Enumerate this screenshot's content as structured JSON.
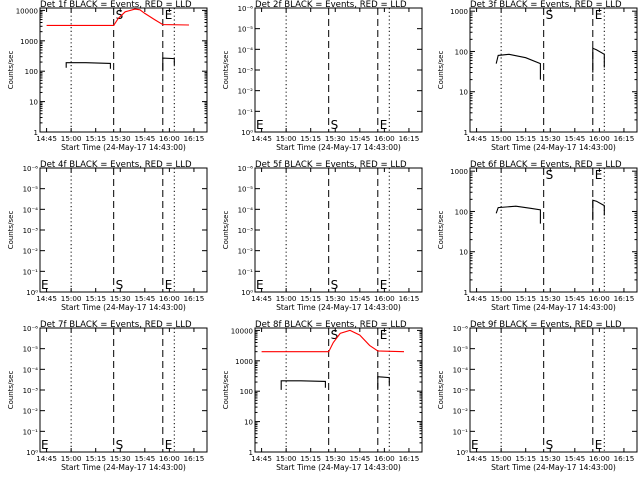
{
  "chart_data": [
    {
      "type": "line",
      "title": "Det 1f BLACK = Events, RED = LLD",
      "xlabel": "Start Time (24-May-17 14:43:00)",
      "ylabel": "Counts/sec",
      "xticks": [
        "14:45",
        "15:00",
        "15:15",
        "15:30",
        "15:45",
        "16:00",
        "16:15"
      ],
      "yticks": [
        "1",
        "10",
        "100",
        "1000",
        "10000"
      ],
      "ylim": [
        1,
        12000
      ],
      "vlines": [
        {
          "style": "dotted",
          "x": 15.0
        },
        {
          "style": "dashed",
          "x": 15.433,
          "label": "S"
        },
        {
          "style": "dashed",
          "x": 15.933,
          "label": "E"
        },
        {
          "style": "dotted",
          "x": 16.05
        }
      ],
      "series": [
        {
          "name": "Events",
          "color": "#000000",
          "points": [
            [
              14.95,
              130
            ],
            [
              14.95,
              190
            ],
            [
              15.15,
              190
            ],
            [
              15.4,
              180
            ],
            [
              15.4,
              120
            ]
          ]
        },
        {
          "name": "Events",
          "color": "#000000",
          "points": [
            [
              15.933,
              100
            ],
            [
              15.933,
              270
            ],
            [
              16.05,
              260
            ],
            [
              16.05,
              160
            ]
          ]
        },
        {
          "name": "LLD",
          "color": "#ff0000",
          "points": [
            [
              14.75,
              3200
            ],
            [
              15.433,
              3200
            ],
            [
              15.48,
              5500
            ],
            [
              15.55,
              9000
            ],
            [
              15.65,
              11000
            ],
            [
              15.7,
              10500
            ],
            [
              15.75,
              8000
            ],
            [
              15.85,
              5000
            ],
            [
              15.933,
              3400
            ],
            [
              16.2,
              3300
            ]
          ]
        }
      ]
    },
    {
      "type": "line",
      "title": "Det 2f BLACK = Events, RED = LLD",
      "xlabel": "Start Time (24-May-17 14:43:00)",
      "ylabel": "Counts/sec",
      "xticks": [
        "14:45",
        "15:00",
        "15:15",
        "15:30",
        "15:45",
        "16:00",
        "16:15"
      ],
      "yticks": [
        "10⁰",
        "10⁻¹",
        "10⁻²",
        "10⁻³",
        "10⁻⁴",
        "10⁻⁵",
        "10⁻⁶"
      ],
      "vlines": [
        {
          "style": "dotted",
          "x": 15.0
        },
        {
          "style": "dashed",
          "x": 15.433,
          "label": "S"
        },
        {
          "style": "dashed",
          "x": 15.933,
          "label": "E"
        },
        {
          "style": "dotted",
          "x": 16.05
        }
      ],
      "series": []
    },
    {
      "type": "line",
      "title": "Det 3f BLACK = Events, RED = LLD",
      "xlabel": "Start Time (24-May-17 14:43:00)",
      "ylabel": "Counts/sec",
      "xticks": [
        "14:45",
        "15:00",
        "15:15",
        "15:30",
        "15:45",
        "16:00",
        "16:15"
      ],
      "yticks": [
        "1",
        "10",
        "100",
        "1000"
      ],
      "ylim": [
        1,
        1200
      ],
      "vlines": [
        {
          "style": "dotted",
          "x": 15.0
        },
        {
          "style": "dashed",
          "x": 15.433,
          "label": "S"
        },
        {
          "style": "dashed",
          "x": 15.933,
          "label": "E"
        },
        {
          "style": "dotted",
          "x": 16.05
        }
      ],
      "series": [
        {
          "name": "Events",
          "color": "#000000",
          "points": [
            [
              14.95,
              50
            ],
            [
              14.97,
              80
            ],
            [
              15.08,
              85
            ],
            [
              15.25,
              70
            ],
            [
              15.4,
              50
            ],
            [
              15.4,
              20
            ]
          ]
        },
        {
          "name": "Events",
          "color": "#000000",
          "points": [
            [
              15.933,
              30
            ],
            [
              15.933,
              120
            ],
            [
              15.97,
              110
            ],
            [
              16.05,
              85
            ],
            [
              16.05,
              40
            ]
          ]
        }
      ]
    },
    {
      "type": "line",
      "title": "Det 4f BLACK = Events, RED = LLD",
      "xlabel": "Start Time (24-May-17 14:43:00)",
      "ylabel": "Counts/sec",
      "xticks": [
        "14:45",
        "15:00",
        "15:15",
        "15:30",
        "15:45",
        "16:00",
        "16:15"
      ],
      "yticks": [
        "10⁰",
        "10⁻¹",
        "10⁻²",
        "10⁻³",
        "10⁻⁴",
        "10⁻⁵",
        "10⁻⁶"
      ],
      "vlines": [
        {
          "style": "dotted",
          "x": 15.0
        },
        {
          "style": "dashed",
          "x": 15.433,
          "label": "S"
        },
        {
          "style": "dashed",
          "x": 15.933,
          "label": "E"
        },
        {
          "style": "dotted",
          "x": 16.05
        }
      ],
      "series": []
    },
    {
      "type": "line",
      "title": "Det 5f BLACK = Events, RED = LLD",
      "xlabel": "Start Time (24-May-17 14:43:00)",
      "ylabel": "Counts/sec",
      "xticks": [
        "14:45",
        "15:00",
        "15:15",
        "15:30",
        "15:45",
        "16:00",
        "16:15"
      ],
      "yticks": [
        "10⁰",
        "10⁻¹",
        "10⁻²",
        "10⁻³",
        "10⁻⁴",
        "10⁻⁵",
        "10⁻⁶"
      ],
      "vlines": [
        {
          "style": "dotted",
          "x": 15.0
        },
        {
          "style": "dashed",
          "x": 15.433,
          "label": "S"
        },
        {
          "style": "dashed",
          "x": 15.933,
          "label": "E"
        },
        {
          "style": "dotted",
          "x": 16.05
        }
      ],
      "series": []
    },
    {
      "type": "line",
      "title": "Det 6f BLACK = Events, RED = LLD",
      "xlabel": "Start Time (24-May-17 14:43:00)",
      "ylabel": "Counts/sec",
      "xticks": [
        "14:45",
        "15:00",
        "15:15",
        "15:30",
        "15:45",
        "16:00",
        "16:15"
      ],
      "yticks": [
        "1",
        "10",
        "100",
        "1000"
      ],
      "ylim": [
        1,
        1200
      ],
      "vlines": [
        {
          "style": "dotted",
          "x": 15.0
        },
        {
          "style": "dashed",
          "x": 15.433,
          "label": "S"
        },
        {
          "style": "dashed",
          "x": 15.933,
          "label": "E"
        },
        {
          "style": "dotted",
          "x": 16.05
        }
      ],
      "series": [
        {
          "name": "Events",
          "color": "#000000",
          "points": [
            [
              14.95,
              90
            ],
            [
              14.97,
              125
            ],
            [
              15.15,
              135
            ],
            [
              15.3,
              120
            ],
            [
              15.4,
              110
            ],
            [
              15.4,
              50
            ]
          ]
        },
        {
          "name": "Events",
          "color": "#000000",
          "points": [
            [
              15.933,
              60
            ],
            [
              15.933,
              190
            ],
            [
              15.97,
              180
            ],
            [
              16.05,
              140
            ],
            [
              16.05,
              80
            ]
          ]
        }
      ]
    },
    {
      "type": "line",
      "title": "Det 7f BLACK = Events, RED = LLD",
      "xlabel": "Start Time (24-May-17 14:43:00)",
      "ylabel": "Counts/sec",
      "xticks": [
        "14:45",
        "15:00",
        "15:15",
        "15:30",
        "15:45",
        "16:00",
        "16:15"
      ],
      "yticks": [
        "10⁰",
        "10⁻¹",
        "10⁻²",
        "10⁻³",
        "10⁻⁴",
        "10⁻⁵",
        "10⁻⁶"
      ],
      "vlines": [
        {
          "style": "dotted",
          "x": 15.0
        },
        {
          "style": "dashed",
          "x": 15.433,
          "label": "S"
        },
        {
          "style": "dashed",
          "x": 15.933,
          "label": "E"
        },
        {
          "style": "dotted",
          "x": 16.05
        }
      ],
      "series": []
    },
    {
      "type": "line",
      "title": "Det 8f BLACK = Events, RED = LLD",
      "xlabel": "Start Time (24-May-17 14:43:00)",
      "ylabel": "Counts/sec",
      "xticks": [
        "14:45",
        "15:00",
        "15:15",
        "15:30",
        "15:45",
        "16:00",
        "16:15"
      ],
      "yticks": [
        "1",
        "10",
        "100",
        "1000",
        "10000"
      ],
      "ylim": [
        1,
        12000
      ],
      "vlines": [
        {
          "style": "dotted",
          "x": 15.0
        },
        {
          "style": "dashed",
          "x": 15.433,
          "label": "S"
        },
        {
          "style": "dashed",
          "x": 15.933,
          "label": "E"
        },
        {
          "style": "dotted",
          "x": 16.05
        }
      ],
      "series": [
        {
          "name": "Events",
          "color": "#000000",
          "points": [
            [
              14.95,
              110
            ],
            [
              14.95,
              220
            ],
            [
              15.15,
              220
            ],
            [
              15.4,
              210
            ],
            [
              15.4,
              130
            ]
          ]
        },
        {
          "name": "Events",
          "color": "#000000",
          "points": [
            [
              15.933,
              120
            ],
            [
              15.933,
              300
            ],
            [
              16.05,
              280
            ],
            [
              16.05,
              160
            ]
          ]
        },
        {
          "name": "LLD",
          "color": "#ff0000",
          "points": [
            [
              14.75,
              2000
            ],
            [
              15.433,
              2000
            ],
            [
              15.48,
              4000
            ],
            [
              15.55,
              8000
            ],
            [
              15.65,
              10000
            ],
            [
              15.75,
              7000
            ],
            [
              15.85,
              3200
            ],
            [
              15.933,
              2100
            ],
            [
              16.2,
              2000
            ]
          ]
        }
      ]
    },
    {
      "type": "line",
      "title": "Det 9f BLACK = Events, RED = LLD",
      "xlabel": "Start Time (24-May-17 14:43:00)",
      "ylabel": "Counts/sec",
      "xticks": [
        "14:45",
        "15:00",
        "15:15",
        "15:30",
        "15:45",
        "16:00",
        "16:15"
      ],
      "yticks": [
        "10⁰",
        "10⁻¹",
        "10⁻²",
        "10⁻³",
        "10⁻⁴",
        "10⁻⁵",
        "10⁻⁶"
      ],
      "vlines": [
        {
          "style": "dotted",
          "x": 15.0
        },
        {
          "style": "dashed",
          "x": 15.433,
          "label": "S"
        },
        {
          "style": "dashed",
          "x": 15.933,
          "label": "E"
        },
        {
          "style": "dotted",
          "x": 16.05
        }
      ],
      "series": []
    }
  ]
}
